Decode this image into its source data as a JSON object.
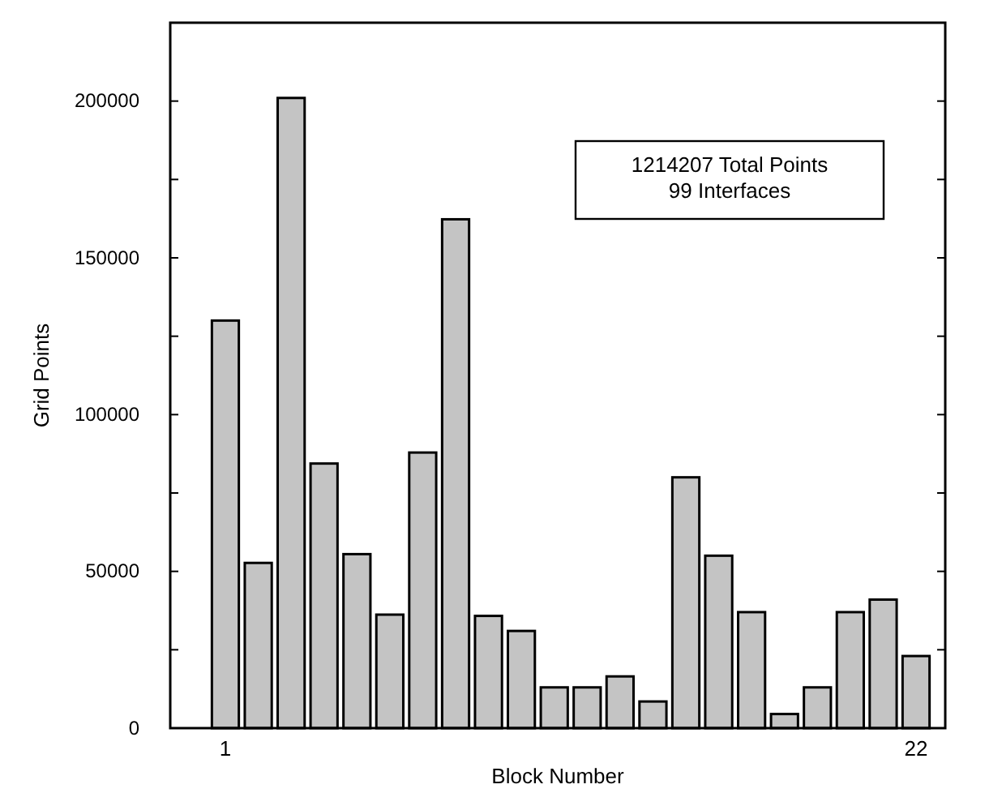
{
  "chart_data": {
    "type": "bar",
    "xlabel": "Block Number",
    "ylabel": "Grid Points",
    "categories": [
      "1",
      null,
      null,
      null,
      null,
      null,
      null,
      null,
      null,
      null,
      null,
      null,
      null,
      null,
      null,
      null,
      null,
      null,
      null,
      null,
      null,
      "22"
    ],
    "values": [
      130000,
      52700,
      201000,
      84400,
      55500,
      36200,
      87900,
      162300,
      35800,
      31000,
      13000,
      13000,
      16500,
      8500,
      80000,
      55000,
      37000,
      4500,
      13000,
      37000,
      41000,
      23000
    ],
    "color": "#c4c4c4",
    "ylim": [
      0,
      225000
    ],
    "yticks": [
      0,
      {
        "value": 25000,
        "label": null
      },
      50000,
      {
        "value": 75000,
        "label": null
      },
      100000,
      {
        "value": 125000,
        "label": null
      },
      150000,
      {
        "value": 175000,
        "label": null
      },
      200000,
      {
        "value": 225000,
        "label": null
      }
    ],
    "annotations": [
      "1214207 Total Points",
      "99 Interfaces"
    ],
    "grid": false
  }
}
